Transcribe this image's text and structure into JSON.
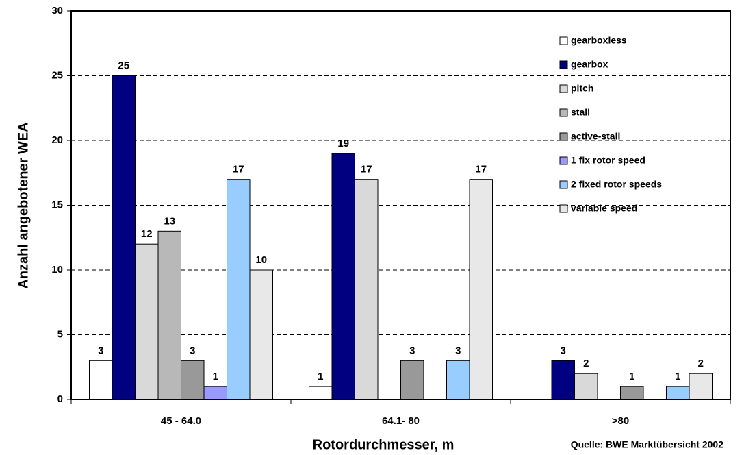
{
  "chart_data": {
    "type": "bar",
    "categories": [
      "45 - 64.0",
      "64.1- 80",
      ">80"
    ],
    "series": [
      {
        "name": "gearboxless",
        "color": "#ffffff",
        "values": [
          3,
          1,
          0
        ]
      },
      {
        "name": "gearbox",
        "color": "#000080",
        "values": [
          25,
          19,
          3
        ]
      },
      {
        "name": "pitch",
        "color": "#d9d9d9",
        "values": [
          12,
          17,
          2
        ]
      },
      {
        "name": "stall",
        "color": "#b8b8b8",
        "values": [
          13,
          0,
          0
        ]
      },
      {
        "name": "active-stall",
        "color": "#999999",
        "values": [
          3,
          3,
          1
        ]
      },
      {
        "name": "1 fix rotor speed",
        "color": "#9999ff",
        "values": [
          1,
          0,
          0
        ]
      },
      {
        "name": "2 fixed rotor speeds",
        "color": "#99ccff",
        "values": [
          17,
          3,
          1
        ]
      },
      {
        "name": "variable speed",
        "color": "#e8e8e8",
        "values": [
          10,
          17,
          2
        ]
      }
    ],
    "ylim": [
      0,
      30
    ],
    "yticks": [
      0,
      5,
      10,
      15,
      20,
      25,
      30
    ],
    "ylabel": "Anzahl angebotener WEA",
    "xlabel": "Rotordurchmesser, m",
    "source": "Quelle: BWE Marktübersicht 2002",
    "grid": true,
    "legend": "upper right"
  }
}
